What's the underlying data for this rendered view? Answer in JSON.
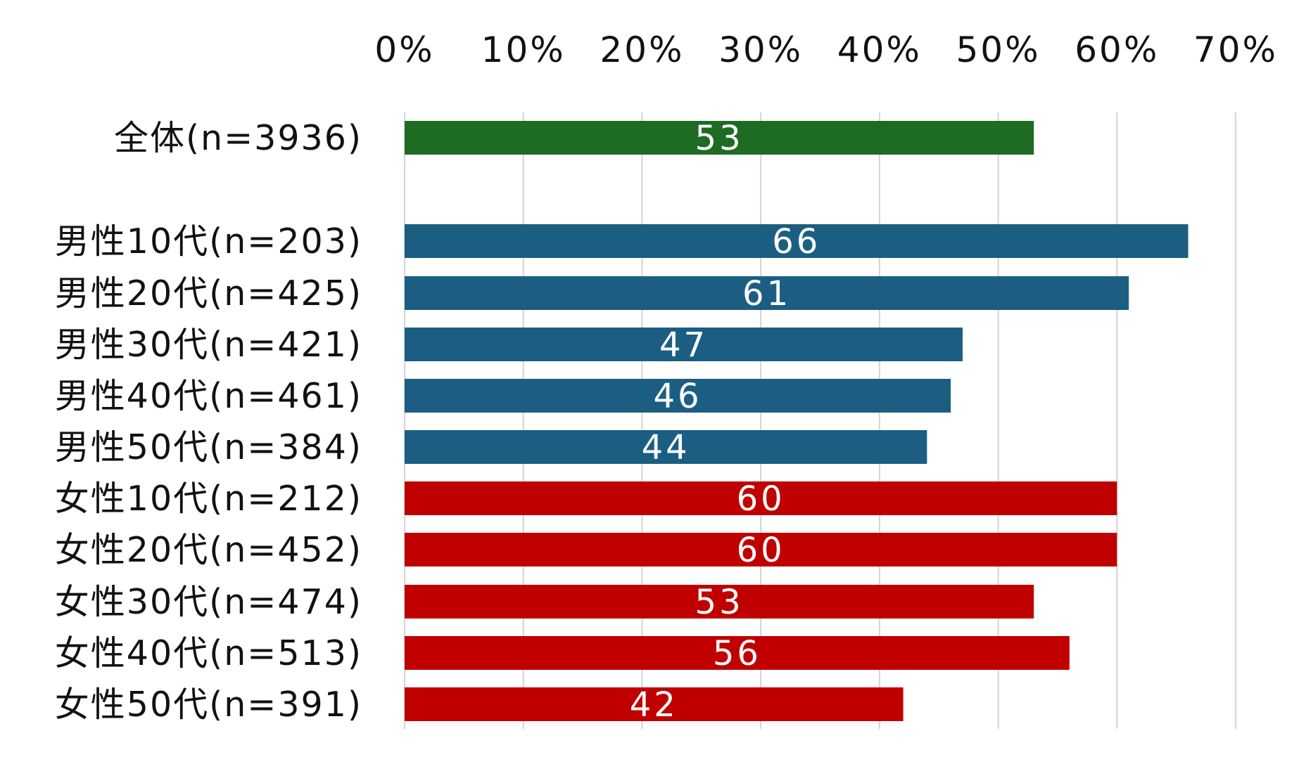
{
  "chart_data": {
    "type": "bar",
    "orientation": "horizontal",
    "title": "",
    "xlabel": "",
    "ylabel": "",
    "xlim": [
      0,
      70
    ],
    "x_ticks": [
      "0%",
      "10%",
      "20%",
      "30%",
      "40%",
      "50%",
      "60%",
      "70%"
    ],
    "x_axis_position": "top",
    "grid": "vertical",
    "legend": "none",
    "categories": [
      "全体(n=3936)",
      "男性10代(n=203)",
      "男性20代(n=425)",
      "男性30代(n=421)",
      "男性40代(n=461)",
      "男性50代(n=384)",
      "女性10代(n=212)",
      "女性20代(n=452)",
      "女性30代(n=474)",
      "女性40代(n=513)",
      "女性50代(n=391)"
    ],
    "values": [
      53,
      66,
      61,
      47,
      46,
      44,
      60,
      60,
      53,
      56,
      42
    ],
    "data_labels": [
      "53",
      "66",
      "61",
      "47",
      "46",
      "44",
      "60",
      "60",
      "53",
      "56",
      "42"
    ],
    "groups": [
      "total",
      "male",
      "male",
      "male",
      "male",
      "male",
      "female",
      "female",
      "female",
      "female",
      "female"
    ],
    "colors": {
      "total": "#1e6b24",
      "male": "#1b5e82",
      "female": "#c00000"
    }
  }
}
